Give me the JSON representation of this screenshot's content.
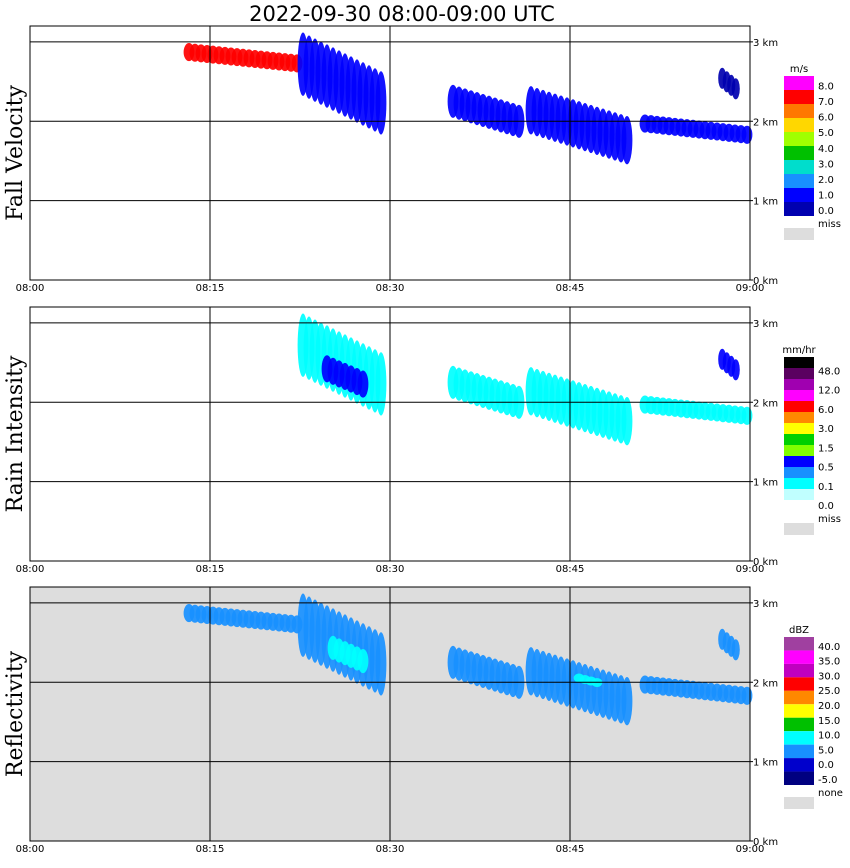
{
  "title": "2022-09-30   08:00-09:00 UTC",
  "chart_data": [
    {
      "type": "heatmap",
      "title": "Fall Velocity",
      "ylabel": "Fall Velocity",
      "x_ticks": [
        "08:00",
        "08:15",
        "08:30",
        "08:45",
        "09:00"
      ],
      "y_ticks": [
        "0 km",
        "1 km",
        "2 km",
        "3 km"
      ],
      "xlim": [
        0,
        60
      ],
      "ylim": [
        0,
        3.2
      ],
      "background": "#ffffff",
      "legend": {
        "unit": "m/s",
        "labels": [
          "8.0",
          "7.0",
          "6.0",
          "5.0",
          "4.0",
          "3.0",
          "2.0",
          "1.0",
          "0.0"
        ],
        "colors": [
          "#ff00ff",
          "#ff0000",
          "#ff7700",
          "#ffd700",
          "#a0ff00",
          "#00c000",
          "#00ddcc",
          "#1890ff",
          "#0000ff",
          "#0000b0"
        ],
        "missing_label": "miss"
      },
      "echoes": [
        {
          "x": [
            13.0,
            22.5
          ],
          "y": [
            2.65,
            2.95
          ],
          "value": 7.5
        },
        {
          "x": [
            22.5,
            29.5
          ],
          "y": [
            1.95,
            3.0
          ],
          "value": 1.5
        },
        {
          "x": [
            35.0,
            41.0
          ],
          "y": [
            1.85,
            2.4
          ],
          "value": 1.5
        },
        {
          "x": [
            41.5,
            50.0
          ],
          "y": [
            1.55,
            2.35
          ],
          "value": 1.5
        },
        {
          "x": [
            51.0,
            60.0
          ],
          "y": [
            1.75,
            2.05
          ],
          "value": 1.5
        },
        {
          "x": [
            57.5,
            59.0
          ],
          "y": [
            2.3,
            2.65
          ],
          "value": 0.5
        }
      ]
    },
    {
      "type": "heatmap",
      "title": "Rain Intensity",
      "ylabel": "Rain Intensity",
      "x_ticks": [
        "08:00",
        "08:15",
        "08:30",
        "08:45",
        "09:00"
      ],
      "y_ticks": [
        "0 km",
        "1 km",
        "2 km",
        "3 km"
      ],
      "xlim": [
        0,
        60
      ],
      "ylim": [
        0,
        3.2
      ],
      "background": "#ffffff",
      "legend": {
        "unit": "mm/hr",
        "labels": [
          "48.0",
          "12.0",
          "6.0",
          "3.0",
          "1.5",
          "0.5",
          "0.1",
          "0.0"
        ],
        "colors": [
          "#000000",
          "#5a0060",
          "#a000b0",
          "#ff00ff",
          "#ff0000",
          "#ff8800",
          "#ffff00",
          "#00d000",
          "#80ff00",
          "#0000ff",
          "#1890ff",
          "#00ffff",
          "#c0ffff",
          "#ffffff"
        ],
        "missing_label": "miss"
      },
      "echoes": [
        {
          "x": [
            22.5,
            29.5
          ],
          "y": [
            1.95,
            3.0
          ],
          "value": 0.3
        },
        {
          "x": [
            24.5,
            28.0
          ],
          "y": [
            2.1,
            2.55
          ],
          "value": 1.0
        },
        {
          "x": [
            35.0,
            41.0
          ],
          "y": [
            1.85,
            2.4
          ],
          "value": 0.1
        },
        {
          "x": [
            41.5,
            50.0
          ],
          "y": [
            1.55,
            2.35
          ],
          "value": 0.3
        },
        {
          "x": [
            51.0,
            60.0
          ],
          "y": [
            1.75,
            2.05
          ],
          "value": 0.3
        },
        {
          "x": [
            57.5,
            59.0
          ],
          "y": [
            2.3,
            2.65
          ],
          "value": 0.5
        }
      ]
    },
    {
      "type": "heatmap",
      "title": "Reflectivity",
      "ylabel": "Reflectivity",
      "x_ticks": [
        "08:00",
        "08:15",
        "08:30",
        "08:45",
        "09:00"
      ],
      "y_ticks": [
        "0 km",
        "1 km",
        "2 km",
        "3 km"
      ],
      "xlim": [
        0,
        60
      ],
      "ylim": [
        0,
        3.2
      ],
      "background": "#dddddd",
      "legend": {
        "unit": "dBZ",
        "labels": [
          "40.0",
          "35.0",
          "30.0",
          "25.0",
          "20.0",
          "15.0",
          "10.0",
          "5.0",
          "0.0",
          "-5.0"
        ],
        "colors": [
          "#a040a0",
          "#ff00ff",
          "#c000c0",
          "#ff0000",
          "#ff8800",
          "#ffff00",
          "#00c000",
          "#00ffff",
          "#1890ff",
          "#0000cc",
          "#000080"
        ],
        "missing_label": "none"
      },
      "echoes": [
        {
          "x": [
            13.0,
            22.5
          ],
          "y": [
            2.65,
            2.95
          ],
          "value": 5
        },
        {
          "x": [
            22.5,
            29.5
          ],
          "y": [
            1.95,
            3.0
          ],
          "value": 7
        },
        {
          "x": [
            25.0,
            28.0
          ],
          "y": [
            2.15,
            2.55
          ],
          "value": 12
        },
        {
          "x": [
            35.0,
            41.0
          ],
          "y": [
            1.85,
            2.4
          ],
          "value": 5
        },
        {
          "x": [
            41.5,
            50.0
          ],
          "y": [
            1.55,
            2.35
          ],
          "value": 7
        },
        {
          "x": [
            45.5,
            47.5
          ],
          "y": [
            1.95,
            2.1
          ],
          "value": 12
        },
        {
          "x": [
            51.0,
            60.0
          ],
          "y": [
            1.75,
            2.05
          ],
          "value": 7
        },
        {
          "x": [
            57.5,
            59.0
          ],
          "y": [
            2.3,
            2.65
          ],
          "value": 5
        }
      ]
    }
  ]
}
